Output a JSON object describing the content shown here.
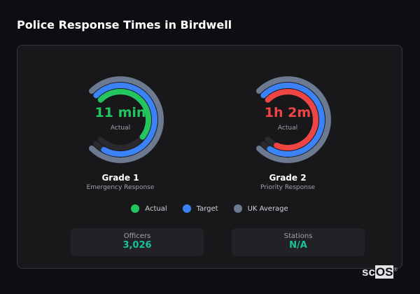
{
  "title": "Police Response Times in Birdwell",
  "gauges": [
    {
      "name": "Grade 1",
      "subtitle": "Emergency Response",
      "value": "11 min",
      "value_label": "Actual",
      "value_color": "#22c55e",
      "fills": {
        "uk_average": 1.0,
        "target": 0.94,
        "actual": 0.64
      }
    },
    {
      "name": "Grade 2",
      "subtitle": "Priority Response",
      "value": "1h 2m",
      "value_label": "Actual",
      "value_color": "#ef4444",
      "fills": {
        "uk_average": 1.0,
        "target": 0.95,
        "actual": 0.92
      }
    }
  ],
  "legend": [
    {
      "label": "Actual",
      "color": "#22c55e"
    },
    {
      "label": "Target",
      "color": "#3b82f6"
    },
    {
      "label": "UK Average",
      "color": "#6b7a90"
    }
  ],
  "stats": [
    {
      "label": "Officers",
      "value": "3,026"
    },
    {
      "label": "Stations",
      "value": "N/A"
    }
  ],
  "logo": "scOS"
}
